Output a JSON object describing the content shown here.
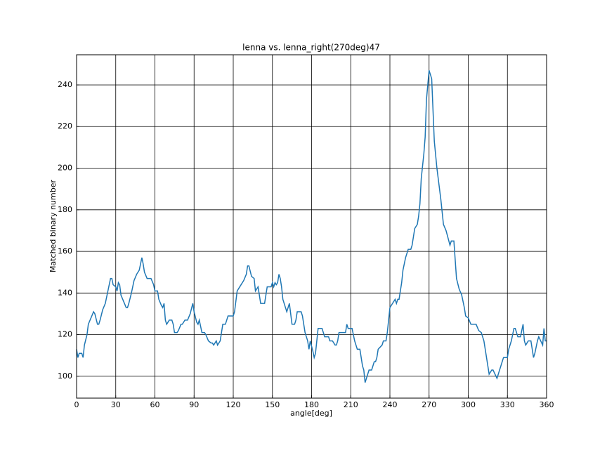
{
  "chart_data": {
    "type": "line",
    "title": "lenna vs. lenna_right(270deg)47",
    "xlabel": "angle[deg]",
    "ylabel": "Matched binary number",
    "x": [
      0,
      1,
      2,
      4,
      5,
      6,
      8,
      9,
      11,
      13,
      14,
      16,
      17,
      18,
      20,
      22,
      24,
      26,
      27,
      28,
      30,
      31,
      32,
      33,
      34,
      36,
      38,
      39,
      40,
      42,
      44,
      46,
      48,
      50,
      51,
      52,
      54,
      56,
      57,
      59,
      60,
      62,
      63,
      65,
      66,
      67,
      68,
      69,
      71,
      73,
      74,
      75,
      77,
      78,
      80,
      81,
      83,
      85,
      87,
      89,
      90,
      92,
      93,
      94,
      96,
      98,
      99,
      101,
      103,
      104,
      105,
      107,
      108,
      110,
      111,
      112,
      114,
      116,
      120,
      121,
      123,
      125,
      128,
      130,
      131,
      132,
      134,
      136,
      137,
      139,
      141,
      143,
      144,
      145,
      146,
      149,
      150,
      151,
      152,
      153,
      154,
      155,
      156,
      157,
      158,
      160,
      161,
      163,
      164,
      165,
      167,
      168,
      169,
      172,
      173,
      175,
      176,
      177,
      178,
      179,
      181,
      182,
      183,
      184,
      185,
      187,
      188,
      189,
      190,
      193,
      194,
      196,
      198,
      199,
      200,
      201,
      203,
      206,
      207,
      208,
      210,
      211,
      213,
      214,
      215,
      217,
      218,
      219,
      220,
      221,
      222,
      224,
      226,
      228,
      229,
      230,
      231,
      234,
      235,
      237,
      238,
      239,
      240,
      242,
      244,
      245,
      246,
      247,
      248,
      249,
      250,
      252,
      254,
      256,
      257,
      258,
      259,
      261,
      262,
      263,
      264,
      266,
      267,
      268,
      270,
      272,
      274,
      276,
      279,
      281,
      283,
      286,
      287,
      289,
      291,
      293,
      295,
      297,
      298,
      300,
      302,
      306,
      308,
      310,
      312,
      314,
      316,
      318,
      319,
      322,
      324,
      326,
      327,
      330,
      331,
      333,
      335,
      336,
      338,
      340,
      342,
      343,
      344,
      346,
      348,
      350,
      351,
      353,
      354,
      357,
      358,
      359,
      360
    ],
    "values": [
      113,
      109,
      111,
      111,
      109,
      115,
      120,
      125,
      128,
      131,
      130,
      125,
      125,
      127,
      132,
      135,
      141,
      147,
      147,
      144,
      143,
      141,
      145,
      144,
      139,
      136,
      133,
      133,
      135,
      140,
      146,
      149,
      151,
      157,
      154,
      150,
      147,
      147,
      147,
      144,
      141,
      141,
      137,
      134,
      133,
      135,
      127,
      125,
      127,
      127,
      125,
      121,
      121,
      122,
      125,
      125,
      127,
      127,
      130,
      135,
      131,
      126,
      125,
      127,
      121,
      121,
      120,
      117,
      116,
      116,
      115,
      117,
      115,
      117,
      121,
      125,
      125,
      129,
      129,
      131,
      141,
      143,
      146,
      149,
      153,
      153,
      148,
      147,
      141,
      143,
      135,
      135,
      135,
      139,
      143,
      143,
      145,
      143,
      145,
      144,
      145,
      149,
      147,
      143,
      137,
      133,
      131,
      135,
      130,
      125,
      125,
      127,
      131,
      131,
      129,
      121,
      119,
      117,
      113,
      117,
      112,
      109,
      111,
      117,
      123,
      123,
      123,
      121,
      119,
      119,
      117,
      117,
      115,
      115,
      117,
      121,
      121,
      121,
      125,
      123,
      123,
      123,
      117,
      115,
      113,
      113,
      109,
      105,
      103,
      97,
      99,
      103,
      103,
      107,
      107,
      109,
      113,
      115,
      117,
      117,
      121,
      127,
      133,
      135,
      137,
      135,
      137,
      137,
      141,
      145,
      151,
      157,
      161,
      161,
      163,
      167,
      171,
      173,
      177,
      183,
      195,
      207,
      215,
      233,
      247,
      243,
      213,
      200,
      185,
      173,
      170,
      163,
      165,
      165,
      147,
      142,
      139,
      133,
      129,
      128,
      125,
      125,
      122,
      121,
      117,
      109,
      101,
      103,
      103,
      99,
      103,
      107,
      109,
      109,
      113,
      117,
      123,
      123,
      119,
      119,
      125,
      117,
      115,
      117,
      117,
      109,
      111,
      117,
      119,
      115,
      123,
      117,
      117
    ],
    "color": "#1f77b4",
    "xlim": [
      0,
      360
    ],
    "xticks": [
      0,
      30,
      60,
      90,
      120,
      150,
      180,
      210,
      240,
      270,
      300,
      330,
      360
    ],
    "ylim": [
      89.5,
      254.5
    ],
    "yticks": [
      100,
      120,
      140,
      160,
      180,
      200,
      220,
      240
    ],
    "grid": true
  }
}
